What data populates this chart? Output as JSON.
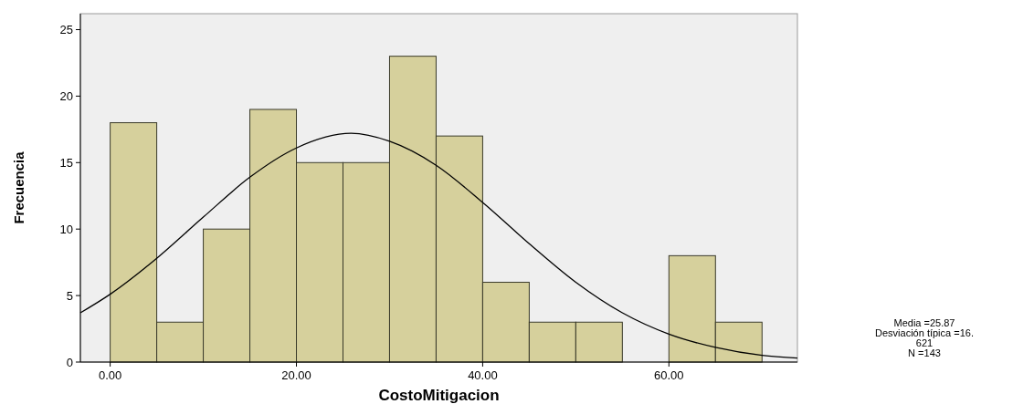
{
  "chart_data": {
    "type": "histogram",
    "xlabel": "CostoMitigacion",
    "ylabel": "Frecuencia",
    "bins": [
      0,
      5,
      10,
      15,
      20,
      25,
      30,
      35,
      40,
      45,
      50,
      55,
      60,
      65,
      70
    ],
    "values": [
      18,
      3,
      10,
      19,
      15,
      15,
      23,
      17,
      6,
      3,
      3,
      0,
      8,
      3
    ],
    "color": "#d6d09c",
    "series": [
      {
        "type": "line",
        "color": "#000000",
        "x": [
          -3.2,
          0,
          5,
          10,
          15,
          20,
          25.87,
          30,
          35,
          40,
          45,
          50,
          55,
          60,
          65,
          70,
          73.8
        ],
        "values": [
          3.7,
          5.1,
          7.8,
          10.9,
          13.9,
          16.1,
          17.2,
          16.6,
          14.8,
          12.0,
          8.9,
          6.0,
          3.7,
          2.1,
          1.1,
          0.5,
          0.3
        ]
      }
    ],
    "xlim": [
      -3.2,
      73.8
    ],
    "xticks": [
      {
        "value": 0,
        "label": "0.00"
      },
      {
        "value": 20,
        "label": "20.00"
      },
      {
        "value": 40,
        "label": "40.00"
      },
      {
        "value": 60,
        "label": "60.00"
      }
    ],
    "ylim": [
      0,
      26.2
    ],
    "yticks": [
      0,
      5,
      10,
      15,
      20,
      25
    ],
    "annotations": [
      "Media =25.87",
      "Desviación típica =16.",
      "621",
      "N =143"
    ]
  }
}
